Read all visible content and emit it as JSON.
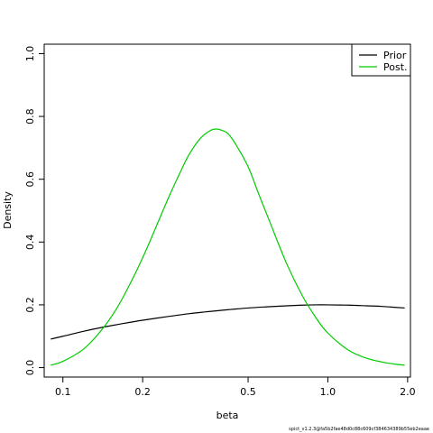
{
  "chart_data": {
    "type": "line",
    "title": "",
    "xlabel": "beta",
    "ylabel": "Density",
    "x_scale": "log",
    "xlim": [
      0.085,
      2.05
    ],
    "ylim": [
      -0.03,
      1.03
    ],
    "x_ticks": [
      0.1,
      0.2,
      0.5,
      1.0,
      2.0
    ],
    "x_tick_labels": [
      "0.1",
      "0.2",
      "0.5",
      "1.0",
      "2.0"
    ],
    "y_ticks": [
      0.0,
      0.2,
      0.4,
      0.6,
      0.8,
      1.0
    ],
    "y_tick_labels": [
      "0.0",
      "0.2",
      "0.4",
      "0.6",
      "0.8",
      "1.0"
    ],
    "grid": false,
    "legend_position": "top-right",
    "series": [
      {
        "name": "Prior",
        "color": "#000000",
        "x": [
          0.09,
          0.1,
          0.12,
          0.14,
          0.17,
          0.2,
          0.25,
          0.3,
          0.35,
          0.4,
          0.5,
          0.6,
          0.7,
          0.8,
          0.9,
          1.0,
          1.2,
          1.4,
          1.6,
          1.8,
          1.95
        ],
        "y": [
          0.091,
          0.1,
          0.116,
          0.128,
          0.141,
          0.151,
          0.163,
          0.172,
          0.178,
          0.183,
          0.19,
          0.194,
          0.197,
          0.199,
          0.2,
          0.2,
          0.199,
          0.197,
          0.195,
          0.192,
          0.19
        ]
      },
      {
        "name": "Post.",
        "color": "#00cc00",
        "x": [
          0.09,
          0.1,
          0.12,
          0.14,
          0.16,
          0.18,
          0.2,
          0.22,
          0.25,
          0.28,
          0.3,
          0.33,
          0.36,
          0.38,
          0.4,
          0.42,
          0.45,
          0.5,
          0.55,
          0.6,
          0.7,
          0.8,
          0.9,
          1.0,
          1.2,
          1.4,
          1.6,
          1.8,
          1.95
        ],
        "y": [
          0.008,
          0.02,
          0.06,
          0.12,
          0.19,
          0.27,
          0.35,
          0.43,
          0.54,
          0.63,
          0.68,
          0.73,
          0.755,
          0.76,
          0.755,
          0.745,
          0.71,
          0.64,
          0.55,
          0.47,
          0.33,
          0.23,
          0.16,
          0.11,
          0.055,
          0.03,
          0.018,
          0.011,
          0.008
        ]
      }
    ]
  },
  "footer_text": "spict_v1.2.3@fa5b2fae48d0c88c609cf384634389b55eb2eaae"
}
